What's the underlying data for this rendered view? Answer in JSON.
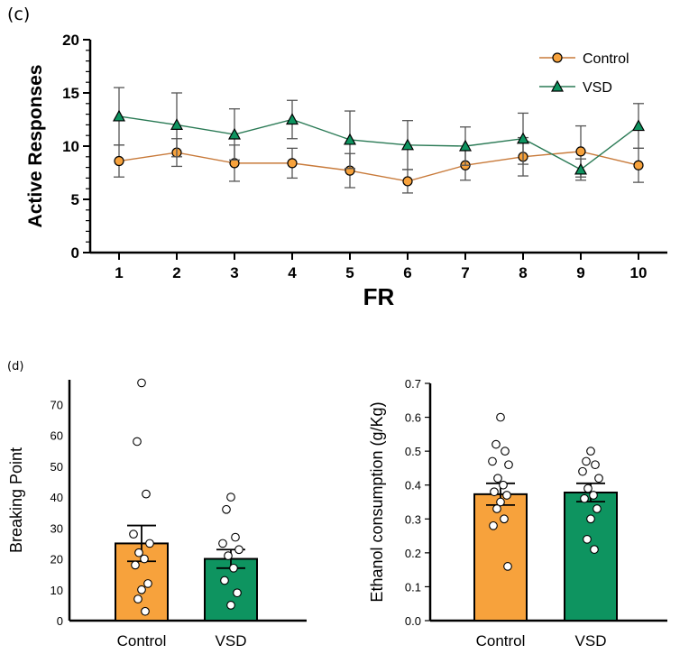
{
  "panel_labels": {
    "c": "(c)",
    "d": "(d)"
  },
  "colors": {
    "control": "#F7A23C",
    "vsd": "#0E9460",
    "control_line": "#C87A3A",
    "vsd_line": "#2A7A55",
    "axis": "#000000"
  },
  "chart_data": [
    {
      "id": "line_fr",
      "type": "line",
      "title": "",
      "xlabel": "FR",
      "ylabel": "Active Responses",
      "x": [
        1,
        2,
        3,
        4,
        5,
        6,
        7,
        8,
        9,
        10
      ],
      "xlim": [
        0.5,
        10.5
      ],
      "ylim": [
        0,
        20
      ],
      "yticks": [
        0,
        5,
        10,
        15,
        20
      ],
      "legend_position": "top-right",
      "series": [
        {
          "name": "Control",
          "marker": "circle",
          "color_key": "control",
          "values": [
            8.6,
            9.4,
            8.4,
            8.4,
            7.7,
            6.7,
            8.2,
            9.0,
            9.5,
            8.2
          ],
          "errors": [
            1.5,
            1.3,
            1.7,
            1.4,
            1.6,
            1.1,
            1.4,
            1.8,
            2.4,
            1.6
          ]
        },
        {
          "name": "VSD",
          "marker": "triangle",
          "color_key": "vsd",
          "values": [
            12.8,
            12.0,
            11.1,
            12.5,
            10.6,
            10.1,
            10.0,
            10.7,
            7.8,
            11.9
          ],
          "errors": [
            2.7,
            3.0,
            2.4,
            1.8,
            2.7,
            2.3,
            1.8,
            2.4,
            1.0,
            2.1
          ]
        }
      ]
    },
    {
      "id": "bar_bp",
      "type": "bar",
      "title": "",
      "xlabel": "",
      "ylabel": "Breaking Point",
      "categories": [
        "Control",
        "VSD"
      ],
      "values": [
        25,
        20
      ],
      "errors": [
        5.8,
        3.0
      ],
      "ylim": [
        0,
        78
      ],
      "yticks": [
        0,
        10,
        20,
        30,
        40,
        50,
        60,
        70
      ],
      "points": [
        [
          77,
          58,
          41,
          28,
          25,
          22,
          20,
          18,
          12,
          10,
          7,
          3
        ],
        [
          40,
          36,
          27,
          25,
          23,
          21,
          17,
          13,
          9,
          5
        ]
      ]
    },
    {
      "id": "bar_eth",
      "type": "bar",
      "title": "",
      "xlabel": "",
      "ylabel": "Ethanol consumption (g/Kg)",
      "categories": [
        "Control",
        "VSD"
      ],
      "values": [
        0.373,
        0.378
      ],
      "errors": [
        0.032,
        0.027
      ],
      "ylim": [
        0,
        0.7
      ],
      "yticks": [
        "0.0",
        "0.1",
        "0.2",
        "0.3",
        "0.4",
        "0.5",
        "0.6",
        "0.7"
      ],
      "points": [
        [
          0.6,
          0.52,
          0.5,
          0.47,
          0.46,
          0.42,
          0.4,
          0.38,
          0.37,
          0.35,
          0.33,
          0.3,
          0.28,
          0.16
        ],
        [
          0.5,
          0.47,
          0.46,
          0.44,
          0.42,
          0.39,
          0.37,
          0.36,
          0.33,
          0.3,
          0.24,
          0.21
        ]
      ]
    }
  ]
}
